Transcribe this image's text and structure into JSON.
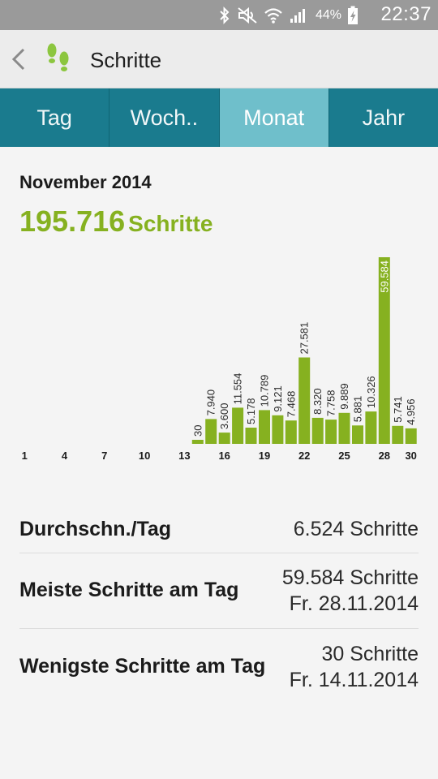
{
  "status_bar": {
    "battery": "44%",
    "time": "22:37",
    "icons": [
      "bluetooth-icon",
      "mute-icon",
      "wifi-icon",
      "signal-icon",
      "battery-charging-icon"
    ]
  },
  "header": {
    "title": "Schritte",
    "back_icon": "chevron-left-icon",
    "app_icon": "footsteps-icon"
  },
  "tabs": [
    {
      "label": "Tag",
      "active": false
    },
    {
      "label": "Woch..",
      "active": false
    },
    {
      "label": "Monat",
      "active": true
    },
    {
      "label": "Jahr",
      "active": false
    }
  ],
  "summary": {
    "period": "November 2014",
    "total": "195.716",
    "unit": "Schritte"
  },
  "chart_data": {
    "type": "bar",
    "categories": [
      1,
      2,
      3,
      4,
      5,
      6,
      7,
      8,
      9,
      10,
      11,
      12,
      13,
      14,
      15,
      16,
      17,
      18,
      19,
      20,
      21,
      22,
      23,
      24,
      25,
      26,
      27,
      28,
      29,
      30
    ],
    "values": [
      0,
      0,
      0,
      0,
      0,
      0,
      0,
      0,
      0,
      0,
      0,
      0,
      0,
      30,
      7940,
      3600,
      11554,
      5178,
      10789,
      9121,
      7468,
      27581,
      8320,
      7758,
      9889,
      5881,
      10326,
      59584,
      5741,
      4956
    ],
    "data_labels": [
      "",
      "",
      "",
      "",
      "",
      "",
      "",
      "",
      "",
      "",
      "",
      "",
      "",
      "30",
      "7.940",
      "3.600",
      "11.554",
      "5.178",
      "10.789",
      "9.121",
      "7.468",
      "27.581",
      "8.320",
      "7.758",
      "9.889",
      "5.881",
      "10.326",
      "59.584",
      "5.741",
      "4.956"
    ],
    "x_tick_labels": [
      "1",
      "4",
      "7",
      "10",
      "13",
      "16",
      "19",
      "22",
      "25",
      "28",
      "30"
    ],
    "ylim": [
      0,
      59584
    ],
    "bar_color": "#86b120",
    "grid": false
  },
  "stats": {
    "avg_label": "Durchschn./Tag",
    "avg_value": "6.524 Schritte",
    "max_label": "Meiste Schritte am Tag",
    "max_value": "59.584 Schritte",
    "max_date": "Fr. 28.11.2014",
    "min_label": "Wenigste Schritte am Tag",
    "min_value": "30 Schritte",
    "min_date": "Fr. 14.11.2014"
  },
  "colors": {
    "accent_green": "#86b120",
    "tab_bar": "#1a7b8e",
    "tab_active": "#6fbfcb"
  }
}
